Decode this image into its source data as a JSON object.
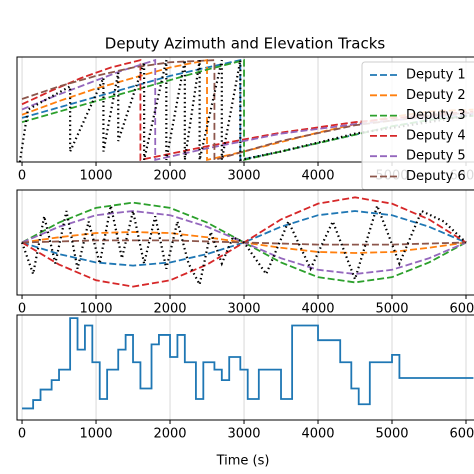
{
  "chart_data": [
    {
      "type": "line",
      "title": "Deputy Azimuth and Elevation Tracks",
      "xlim": [
        -68,
        6108
      ],
      "ylim": [
        0,
        1
      ],
      "xticks": [
        0,
        1000,
        2000,
        3000,
        4000,
        5000,
        6000
      ],
      "grid": true,
      "legend": "upper right",
      "series": [
        {
          "name": "Deputy 1",
          "color": "#1f77b4",
          "dash": "dashed",
          "x": [
            0,
            500,
            1000,
            1500,
            2000,
            2500,
            2950,
            2950,
            3500,
            4000,
            4500,
            5000,
            5500,
            6100
          ],
          "values": [
            0.42,
            0.52,
            0.62,
            0.72,
            0.82,
            0.9,
            0.97,
            0.02,
            0.1,
            0.18,
            0.26,
            0.34,
            0.4,
            0.45
          ]
        },
        {
          "name": "Deputy 2",
          "color": "#ff7f0e",
          "dash": "dashed",
          "x": [
            0,
            500,
            1000,
            1500,
            2000,
            2500,
            2500,
            3000,
            3500,
            4000,
            4500,
            5000,
            5500,
            6100
          ],
          "values": [
            0.45,
            0.58,
            0.7,
            0.8,
            0.9,
            0.97,
            0.02,
            0.1,
            0.19,
            0.28,
            0.36,
            0.43,
            0.48,
            0.5
          ]
        },
        {
          "name": "Deputy 3",
          "color": "#2ca02c",
          "dash": "dashed",
          "x": [
            0,
            500,
            1000,
            1500,
            2000,
            2500,
            3000,
            3000,
            3500,
            4000,
            4500,
            5000,
            5500,
            6100
          ],
          "values": [
            0.38,
            0.48,
            0.58,
            0.68,
            0.78,
            0.88,
            0.97,
            0.02,
            0.1,
            0.18,
            0.26,
            0.34,
            0.4,
            0.44
          ]
        },
        {
          "name": "Deputy 4",
          "color": "#d62728",
          "dash": "dashed",
          "x": [
            0,
            400,
            800,
            1200,
            1600,
            1600,
            2500,
            3500,
            4500,
            5500,
            6100
          ],
          "values": [
            0.55,
            0.68,
            0.8,
            0.9,
            0.97,
            0.02,
            0.15,
            0.28,
            0.38,
            0.45,
            0.48
          ]
        },
        {
          "name": "Deputy 5",
          "color": "#9467bd",
          "dash": "dashed",
          "x": [
            0,
            450,
            900,
            1350,
            1800,
            1800,
            2500,
            3500,
            4500,
            5500,
            6100
          ],
          "values": [
            0.5,
            0.63,
            0.75,
            0.87,
            0.97,
            0.02,
            0.13,
            0.27,
            0.36,
            0.43,
            0.46
          ]
        },
        {
          "name": "Deputy 6",
          "color": "#8c564b",
          "dash": "dashed",
          "x": [
            0,
            500,
            1000,
            1500,
            2000,
            2600,
            2600,
            3500,
            4500,
            5500,
            6100
          ],
          "values": [
            0.6,
            0.72,
            0.82,
            0.9,
            0.95,
            0.97,
            0.02,
            0.2,
            0.35,
            0.44,
            0.47
          ]
        },
        {
          "color": "#000000",
          "dash": "dotted",
          "x": [
            -30,
            80,
            650,
            650,
            1100,
            1100,
            1300,
            1300,
            1650,
            1650,
            1950,
            1950,
            2200,
            2200,
            2400,
            2400,
            2700,
            2700,
            2950,
            2950,
            3500,
            4500,
            5500,
            6100
          ],
          "values": [
            0.0,
            0.5,
            0.72,
            0.1,
            0.8,
            0.1,
            0.85,
            0.2,
            0.95,
            0.02,
            0.97,
            0.02,
            0.97,
            0.02,
            0.97,
            0.02,
            0.97,
            0.02,
            0.97,
            0.02,
            0.1,
            0.27,
            0.38,
            0.45
          ]
        }
      ]
    },
    {
      "type": "line",
      "xlim": [
        -68,
        6108
      ],
      "ylim": [
        0,
        1
      ],
      "xticks": [
        0,
        1000,
        2000,
        3000,
        4000,
        5000,
        6000
      ],
      "grid": true,
      "series": [
        {
          "color": "#1f77b4",
          "dash": "dashed",
          "x": [
            0,
            500,
            1000,
            1500,
            2000,
            2500,
            3000,
            3500,
            4000,
            4500,
            5000,
            5500,
            6000
          ],
          "values": [
            0.5,
            0.39,
            0.31,
            0.28,
            0.31,
            0.39,
            0.5,
            0.65,
            0.76,
            0.8,
            0.76,
            0.65,
            0.5
          ]
        },
        {
          "color": "#ff7f0e",
          "dash": "dashed",
          "x": [
            0,
            500,
            1000,
            1500,
            2000,
            2500,
            3000,
            3500,
            4000,
            4500,
            5000,
            5500,
            6000
          ],
          "values": [
            0.5,
            0.55,
            0.59,
            0.6,
            0.59,
            0.55,
            0.5,
            0.45,
            0.41,
            0.4,
            0.41,
            0.45,
            0.5
          ]
        },
        {
          "color": "#2ca02c",
          "dash": "dashed",
          "x": [
            0,
            500,
            1000,
            1500,
            2000,
            2500,
            3000,
            3500,
            4000,
            4500,
            5000,
            5500,
            6000
          ],
          "values": [
            0.5,
            0.69,
            0.83,
            0.88,
            0.83,
            0.69,
            0.5,
            0.31,
            0.17,
            0.12,
            0.17,
            0.31,
            0.5
          ]
        },
        {
          "color": "#d62728",
          "dash": "dashed",
          "x": [
            0,
            500,
            1000,
            1500,
            2000,
            2500,
            3000,
            3500,
            4000,
            4500,
            5000,
            5500,
            6000
          ],
          "values": [
            0.5,
            0.29,
            0.14,
            0.08,
            0.14,
            0.29,
            0.5,
            0.72,
            0.87,
            0.93,
            0.87,
            0.72,
            0.5
          ]
        },
        {
          "color": "#9467bd",
          "dash": "dashed",
          "x": [
            0,
            500,
            1000,
            1500,
            2000,
            2500,
            3000,
            3500,
            4000,
            4500,
            5000,
            5500,
            6000
          ],
          "values": [
            0.5,
            0.65,
            0.76,
            0.8,
            0.76,
            0.65,
            0.5,
            0.35,
            0.24,
            0.2,
            0.24,
            0.35,
            0.5
          ]
        },
        {
          "color": "#8c564b",
          "dash": "dashed",
          "x": [
            0,
            500,
            1000,
            1500,
            2000,
            2500,
            3000,
            3500,
            4000,
            4500,
            5000,
            5500,
            6000
          ],
          "values": [
            0.5,
            0.51,
            0.52,
            0.52,
            0.52,
            0.51,
            0.5,
            0.49,
            0.48,
            0.48,
            0.48,
            0.49,
            0.5
          ]
        },
        {
          "color": "#000000",
          "dash": "dotted",
          "x": [
            0,
            150,
            300,
            450,
            600,
            750,
            900,
            1050,
            1200,
            1350,
            1500,
            1650,
            1800,
            1950,
            2100,
            2250,
            2400,
            2550,
            2700,
            2850,
            3000,
            3300,
            3600,
            3900,
            4200,
            4500,
            4800,
            5100,
            5400,
            5700,
            6000
          ],
          "values": [
            0.5,
            0.2,
            0.75,
            0.3,
            0.8,
            0.25,
            0.7,
            0.3,
            0.85,
            0.35,
            0.8,
            0.3,
            0.75,
            0.25,
            0.7,
            0.3,
            0.1,
            0.6,
            0.3,
            0.55,
            0.5,
            0.2,
            0.7,
            0.25,
            0.7,
            0.15,
            0.85,
            0.3,
            0.8,
            0.7,
            0.5
          ]
        }
      ]
    },
    {
      "type": "line",
      "drawstyle": "steps-post",
      "x_label": "Time (s)",
      "xlim": [
        -68,
        6108
      ],
      "ylim": [
        0,
        1
      ],
      "xticks": [
        0,
        1000,
        2000,
        3000,
        4000,
        5000,
        6000
      ],
      "grid": true,
      "series": [
        {
          "color": "#1f77b4",
          "dash": "solid",
          "x": [
            0,
            150,
            250,
            400,
            500,
            650,
            750,
            850,
            950,
            1050,
            1150,
            1300,
            1400,
            1500,
            1600,
            1750,
            1850,
            2000,
            2100,
            2200,
            2350,
            2450,
            2600,
            2700,
            2800,
            2950,
            3050,
            3200,
            3300,
            3500,
            3650,
            4000,
            4300,
            4450,
            4550,
            4700,
            5000,
            5100,
            6100
          ],
          "values": [
            0.11,
            0.19,
            0.29,
            0.38,
            0.48,
            0.97,
            0.67,
            0.9,
            0.55,
            0.2,
            0.48,
            0.67,
            0.81,
            0.55,
            0.3,
            0.72,
            0.81,
            0.6,
            0.81,
            0.55,
            0.2,
            0.55,
            0.48,
            0.38,
            0.6,
            0.48,
            0.2,
            0.48,
            0.48,
            0.2,
            0.9,
            0.76,
            0.55,
            0.3,
            0.15,
            0.55,
            0.62,
            0.4,
            0.4
          ]
        }
      ]
    }
  ]
}
